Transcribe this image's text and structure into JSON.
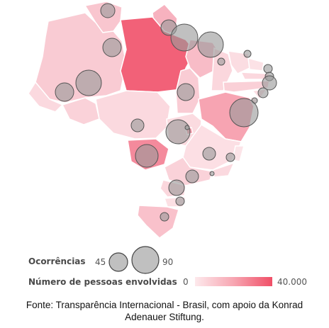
{
  "legend": {
    "occurrences_label": "Ocorrências",
    "size_small_value": "45",
    "size_large_value": "90",
    "people_label": "Número de pessoas envolvidas",
    "people_min": "0",
    "people_max": "40.000"
  },
  "source": {
    "line1": "Fonte: Transparência Internacional - Brasil, com apoio da Konrad",
    "line2": "Adenauer Stiftung."
  },
  "colors": {
    "bubble_fill": "#9a9a9a",
    "bubble_stroke": "#555555",
    "fill_low": "#fde9ec",
    "fill_mid": "#f7a6b2",
    "fill_high": "#f04f67",
    "state_border": "#ffffff"
  }
}
